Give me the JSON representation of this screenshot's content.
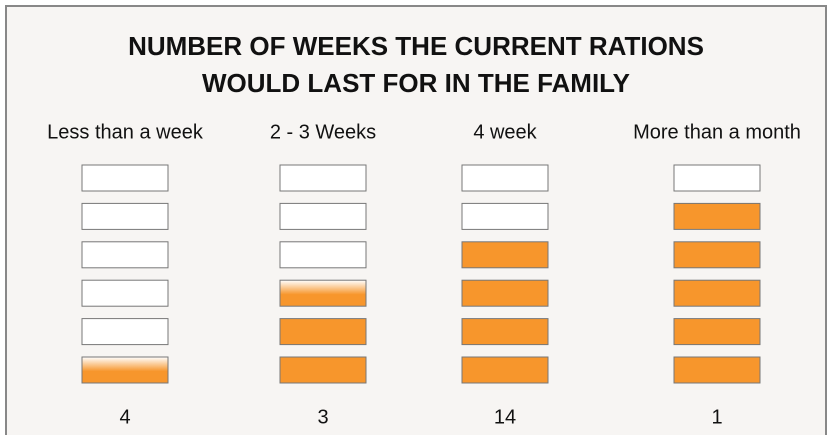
{
  "chart_data": {
    "type": "pictogram",
    "title": [
      "NUMBER OF WEEKS THE CURRENT RATIONS",
      "WOULD LAST FOR IN THE FAMILY"
    ],
    "categories": [
      "Less than a week",
      "2 - 3 Weeks",
      "4 week",
      "More than a month"
    ],
    "values": [
      4,
      3,
      14,
      1
    ],
    "fill_levels": [
      0.5,
      2.5,
      4,
      5
    ],
    "boxes": 6,
    "color": "#f7962c"
  }
}
